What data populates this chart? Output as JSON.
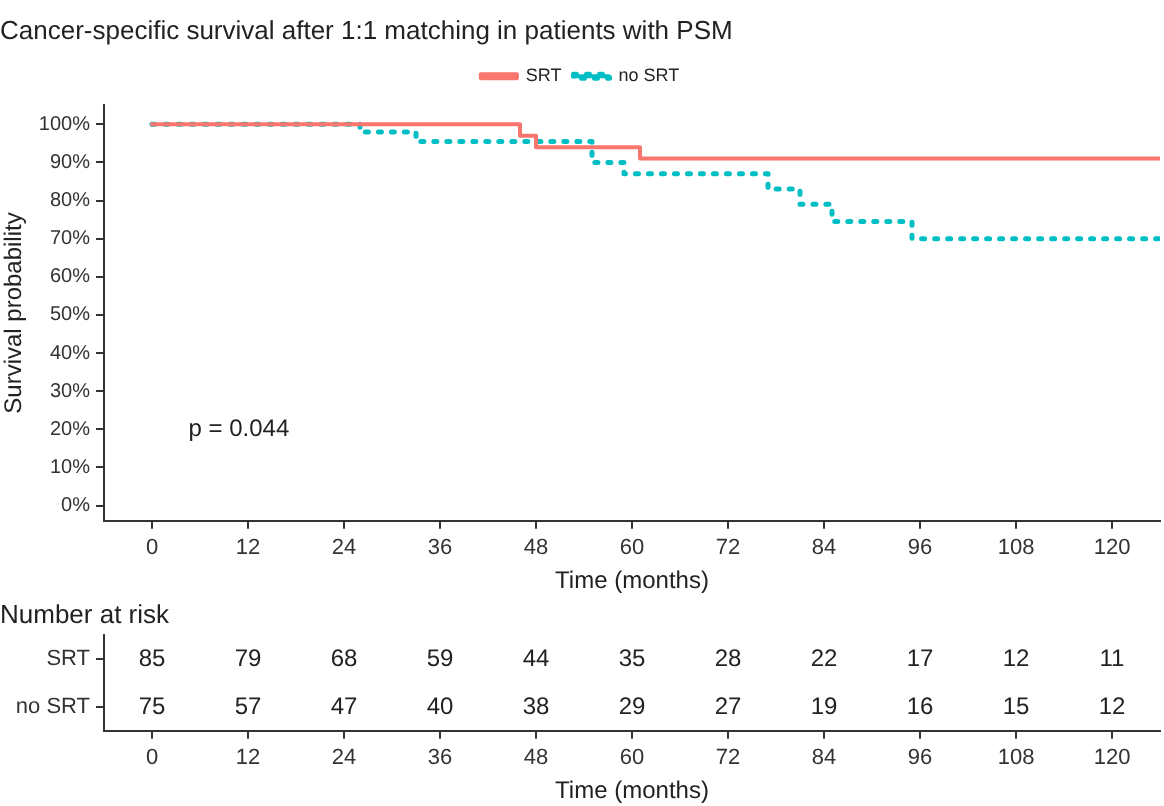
{
  "chart_data": [
    {
      "type": "step",
      "title": "Cancer-specific survival after 1:1 matching in patients with PSM",
      "xlabel": "Time (months)",
      "ylabel": "Survival probability",
      "series": [
        {
          "name": "SRT",
          "color": "#f8766d",
          "line_style": "solid",
          "x": [
            0,
            46,
            48,
            61,
            126
          ],
          "values": [
            100,
            97,
            94,
            91,
            91
          ]
        },
        {
          "name": "no SRT",
          "color": "#00bfc4",
          "line_style": "dotted",
          "x": [
            0,
            26,
            33,
            55,
            59,
            77,
            81,
            85,
            95,
            126
          ],
          "values": [
            100,
            98,
            95.5,
            90,
            87,
            83,
            79,
            74.5,
            70,
            70
          ]
        }
      ],
      "xlim": [
        -6,
        126
      ],
      "xticks": [
        0,
        12,
        24,
        36,
        48,
        60,
        72,
        84,
        96,
        108,
        120
      ],
      "ylim": [
        -4,
        105
      ],
      "yticks": [
        {
          "value": 0,
          "label": "0%"
        },
        {
          "value": 10,
          "label": "10%"
        },
        {
          "value": 20,
          "label": "20%"
        },
        {
          "value": 30,
          "label": "30%"
        },
        {
          "value": 40,
          "label": "40%"
        },
        {
          "value": 50,
          "label": "50%"
        },
        {
          "value": 60,
          "label": "60%"
        },
        {
          "value": 70,
          "label": "70%"
        },
        {
          "value": 80,
          "label": "80%"
        },
        {
          "value": 90,
          "label": "90%"
        },
        {
          "value": 100,
          "label": "100%"
        }
      ],
      "legend": "top",
      "annotations": [
        "p = 0.044"
      ]
    },
    {
      "type": "heatmap",
      "title": "Number at risk",
      "xlabel": "Time (months)",
      "categories": [
        "0",
        "12",
        "24",
        "36",
        "48",
        "60",
        "72",
        "84",
        "96",
        "108",
        "120"
      ],
      "y_categories": [
        "SRT",
        "no SRT"
      ],
      "data_labels": true,
      "cells": [
        [
          85,
          79,
          68,
          59,
          44,
          35,
          28,
          22,
          17,
          12,
          11
        ],
        [
          75,
          57,
          47,
          40,
          38,
          29,
          27,
          19,
          16,
          15,
          12
        ]
      ]
    }
  ]
}
